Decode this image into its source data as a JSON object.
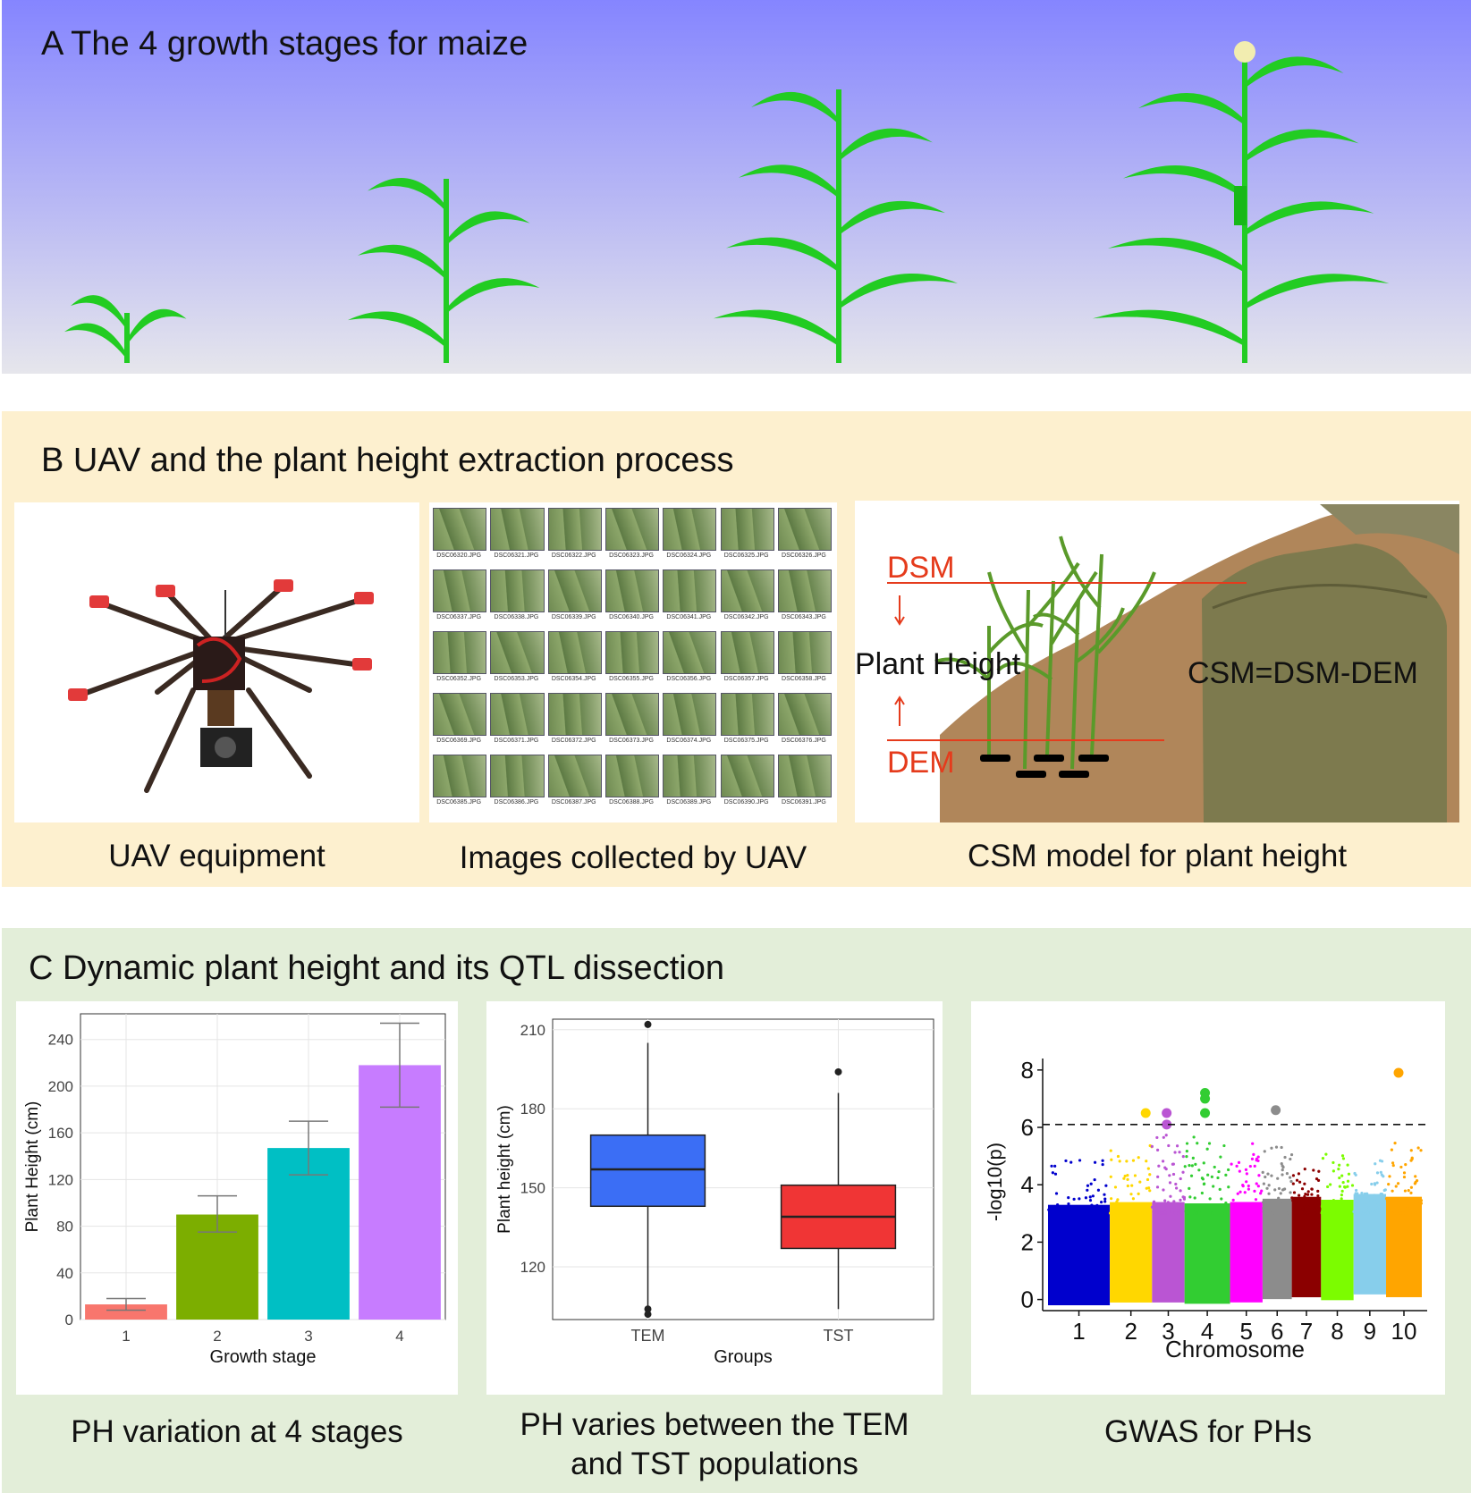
{
  "panel_a": {
    "title": "A The 4 growth stages for maize",
    "colors": {
      "sky_top": "#8585ff",
      "sky_bottom": "#e6e6ec",
      "leaf": "#22cc22"
    }
  },
  "panel_b": {
    "title": "B UAV and the plant height extraction process",
    "captions": {
      "uav": "UAV equipment",
      "images": "Images collected by UAV",
      "csm": "CSM model for plant height"
    },
    "csm_labels": {
      "dsm": "DSM",
      "dem": "DEM",
      "plant_height": "Plant Height",
      "formula": "CSM=DSM-DEM"
    },
    "image_files": [
      "DSC06320.JPG",
      "DSC06321.JPG",
      "DSC06322.JPG",
      "DSC06323.JPG",
      "DSC06324.JPG",
      "DSC06325.JPG",
      "DSC06326.JPG",
      "DSC06337.JPG",
      "DSC06338.JPG",
      "DSC06339.JPG",
      "DSC06340.JPG",
      "DSC06341.JPG",
      "DSC06342.JPG",
      "DSC06343.JPG",
      "DSC06352.JPG",
      "DSC06353.JPG",
      "DSC06354.JPG",
      "DSC06355.JPG",
      "DSC06356.JPG",
      "DSC06357.JPG",
      "DSC06358.JPG",
      "DSC06369.JPG",
      "DSC06371.JPG",
      "DSC06372.JPG",
      "DSC06373.JPG",
      "DSC06374.JPG",
      "DSC06375.JPG",
      "DSC06376.JPG",
      "DSC06385.JPG",
      "DSC06386.JPG",
      "DSC06387.JPG",
      "DSC06388.JPG",
      "DSC06389.JPG",
      "DSC06390.JPG",
      "DSC06391.JPG"
    ]
  },
  "panel_c": {
    "title": "C Dynamic plant height and its QTL dissection",
    "captions": {
      "bar": "PH variation at 4 stages",
      "box_line1": "PH varies between the TEM",
      "box_line2": "and TST populations",
      "gwas": "GWAS for PHs"
    }
  },
  "chart_data": [
    {
      "type": "bar",
      "xlabel": "Growth stage",
      "ylabel": "Plant Height (cm)",
      "categories": [
        "1",
        "2",
        "3",
        "4"
      ],
      "values": [
        13,
        90,
        147,
        218
      ],
      "error": [
        [
          8,
          18
        ],
        [
          75,
          106
        ],
        [
          124,
          170
        ],
        [
          182,
          254
        ]
      ],
      "colors": [
        "#f8766d",
        "#7cae00",
        "#00bfc4",
        "#c77cff"
      ],
      "ylim": [
        0,
        262
      ],
      "yticks": [
        0,
        40,
        80,
        120,
        160,
        200,
        240
      ],
      "grid": true
    },
    {
      "type": "box",
      "xlabel": "Groups",
      "ylabel": "Plant height (cm)",
      "categories": [
        "TEM",
        "TST"
      ],
      "boxes": [
        {
          "name": "TEM",
          "min": 104,
          "q1": 143,
          "median": 157,
          "q3": 170,
          "max": 205,
          "outliers": [
            102,
            104,
            212
          ],
          "color": "#3b6ef5"
        },
        {
          "name": "TST",
          "min": 104,
          "q1": 127,
          "median": 139,
          "q3": 151,
          "max": 186,
          "outliers": [
            194
          ],
          "color": "#f03535"
        }
      ],
      "ylim": [
        100,
        214
      ],
      "yticks": [
        120,
        150,
        180,
        210
      ],
      "grid": true
    },
    {
      "type": "scatter",
      "subtype": "manhattan",
      "xlabel": "Chromosome",
      "ylabel": "-log10(p)",
      "chromosomes": [
        "1",
        "2",
        "3",
        "4",
        "5",
        "6",
        "7",
        "8",
        "9",
        "10"
      ],
      "chromosome_colors": [
        "#0000cd",
        "#ffd700",
        "#ba55d3",
        "#32cd32",
        "#ff00ff",
        "#8c8c8c",
        "#8b0000",
        "#7cfc00",
        "#87ceeb",
        "#ffa500"
      ],
      "threshold": 6.1,
      "ylim": [
        -0.2,
        8.4
      ],
      "yticks": [
        0,
        2,
        4,
        6,
        8
      ],
      "significant_hits": [
        {
          "chromosome": "2",
          "y": 6.5
        },
        {
          "chromosome": "3",
          "y": 6.5
        },
        {
          "chromosome": "3",
          "y": 6.1
        },
        {
          "chromosome": "4",
          "y": 7.2
        },
        {
          "chromosome": "4",
          "y": 7.0
        },
        {
          "chromosome": "4",
          "y": 6.5
        },
        {
          "chromosome": "6",
          "y": 6.6
        },
        {
          "chromosome": "10",
          "y": 7.9
        }
      ]
    }
  ]
}
